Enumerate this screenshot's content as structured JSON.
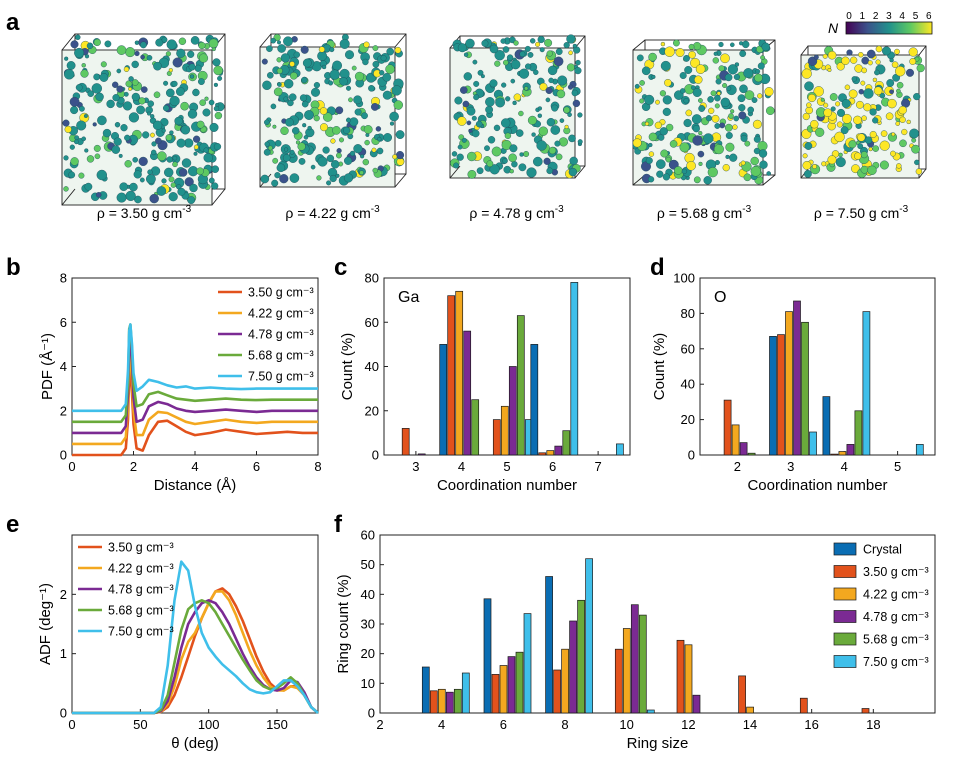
{
  "panel_a": {
    "label": "a",
    "colorbar": {
      "label": "N",
      "ticks": [
        "0",
        "1",
        "2",
        "3",
        "4",
        "5",
        "6"
      ]
    },
    "structures": [
      {
        "density": "3.50",
        "caption_prefix": "ρ = 3.50 g cm",
        "caption_sup": "-3"
      },
      {
        "density": "4.22",
        "caption_prefix": "ρ = 4.22 g cm",
        "caption_sup": "-3"
      },
      {
        "density": "4.78",
        "caption_prefix": "ρ = 4.78 g cm",
        "caption_sup": "-3"
      },
      {
        "density": "5.68",
        "caption_prefix": "ρ = 5.68 g cm",
        "caption_sup": "-3"
      },
      {
        "density": "7.50",
        "caption_prefix": "ρ = 7.50 g cm",
        "caption_sup": "-3"
      }
    ]
  },
  "colors": {
    "crystal": "#0a6db3",
    "d350": "#e2521c",
    "d422": "#f3a81f",
    "d478": "#7b2a93",
    "d568": "#6aaa3b",
    "d750": "#3fbfea",
    "viridis": [
      "#440154",
      "#3b528b",
      "#21918c",
      "#5ec962",
      "#fde725"
    ]
  },
  "chart_data": [
    {
      "id": "b",
      "label": "b",
      "type": "line",
      "xlabel": "Distance (Å)",
      "ylabel": "PDF (Å⁻¹)",
      "xlim": [
        0,
        8
      ],
      "ylim": [
        0,
        8
      ],
      "xticks": [
        0,
        2,
        4,
        6,
        8
      ],
      "yticks": [
        0,
        2,
        4,
        6,
        8
      ],
      "legend_position": "top-right",
      "series": [
        {
          "name": "3.50 g cm⁻³",
          "offset": 0.0,
          "x": [
            0,
            1.6,
            1.75,
            1.82,
            1.86,
            1.9,
            1.95,
            2.0,
            2.1,
            2.3,
            2.5,
            2.8,
            3.1,
            3.4,
            3.7,
            4.0,
            4.5,
            5.0,
            5.5,
            6.0,
            6.5,
            7.0,
            7.5,
            8.0
          ],
          "y": [
            0,
            0,
            0.3,
            1.6,
            3.6,
            3.9,
            2.8,
            1.4,
            0.3,
            0.2,
            0.9,
            1.5,
            1.55,
            1.3,
            1.05,
            0.9,
            1.0,
            1.15,
            1.05,
            0.95,
            1.0,
            1.05,
            1.0,
            1.0
          ]
        },
        {
          "name": "4.22 g cm⁻³",
          "offset": 0.5,
          "x": [
            0,
            1.6,
            1.75,
            1.82,
            1.86,
            1.9,
            1.95,
            2.0,
            2.1,
            2.3,
            2.5,
            2.8,
            3.1,
            3.4,
            3.7,
            4.0,
            4.5,
            5.0,
            5.5,
            6.0,
            6.5,
            7.0,
            7.5,
            8.0
          ],
          "y": [
            0,
            0,
            0.3,
            1.7,
            3.8,
            4.1,
            3.0,
            1.5,
            0.4,
            0.4,
            1.1,
            1.45,
            1.4,
            1.2,
            1.0,
            0.9,
            1.0,
            1.1,
            1.0,
            0.95,
            1.0,
            1.0,
            1.0,
            1.0
          ]
        },
        {
          "name": "4.78 g cm⁻³",
          "offset": 1.0,
          "x": [
            0,
            1.6,
            1.75,
            1.82,
            1.86,
            1.9,
            1.95,
            2.0,
            2.1,
            2.3,
            2.5,
            2.8,
            3.1,
            3.4,
            3.7,
            4.0,
            4.5,
            5.0,
            5.5,
            6.0,
            6.5,
            7.0,
            7.5,
            8.0
          ],
          "y": [
            0,
            0,
            0.3,
            1.8,
            4.0,
            4.3,
            3.2,
            1.6,
            0.5,
            0.6,
            1.2,
            1.4,
            1.3,
            1.1,
            1.0,
            0.95,
            1.0,
            1.05,
            1.0,
            0.95,
            1.0,
            1.0,
            1.0,
            1.0
          ]
        },
        {
          "name": "5.68 g cm⁻³",
          "offset": 1.5,
          "x": [
            0,
            1.6,
            1.75,
            1.82,
            1.86,
            1.9,
            1.95,
            2.0,
            2.1,
            2.3,
            2.5,
            2.8,
            3.1,
            3.4,
            3.7,
            4.0,
            4.5,
            5.0,
            5.5,
            6.0,
            6.5,
            7.0,
            7.5,
            8.0
          ],
          "y": [
            0,
            0,
            0.3,
            1.8,
            4.2,
            4.4,
            3.3,
            1.7,
            0.7,
            0.8,
            1.25,
            1.35,
            1.2,
            1.05,
            1.0,
            0.95,
            1.0,
            1.05,
            1.0,
            0.98,
            1.0,
            1.0,
            1.0,
            1.0
          ]
        },
        {
          "name": "7.50 g cm⁻³",
          "offset": 2.0,
          "x": [
            0,
            1.6,
            1.75,
            1.82,
            1.86,
            1.9,
            1.95,
            2.0,
            2.1,
            2.3,
            2.5,
            2.8,
            3.1,
            3.4,
            3.7,
            4.0,
            4.5,
            5.0,
            5.5,
            6.0,
            6.5,
            7.0,
            7.5,
            8.0
          ],
          "y": [
            0,
            0,
            0.3,
            1.8,
            3.6,
            3.9,
            3.0,
            1.7,
            0.9,
            1.1,
            1.4,
            1.3,
            1.15,
            1.05,
            1.1,
            1.0,
            1.05,
            1.0,
            0.98,
            1.0,
            1.0,
            1.0,
            1.0,
            1.0
          ]
        }
      ]
    },
    {
      "id": "c",
      "label": "c",
      "type": "bar",
      "inset_label": "Ga",
      "xlabel": "Coordination number",
      "ylabel": "Count (%)",
      "xlim": [
        2.3,
        7.7
      ],
      "ylim": [
        0,
        80
      ],
      "yticks": [
        0,
        20,
        40,
        60,
        80
      ],
      "categories": [
        "3",
        "4",
        "5",
        "6",
        "7"
      ],
      "series": [
        {
          "name": "Crystal",
          "values": [
            0,
            50,
            0,
            50,
            0
          ]
        },
        {
          "name": "3.50 g cm⁻³",
          "values": [
            12,
            72,
            16,
            1,
            0
          ]
        },
        {
          "name": "4.22 g cm⁻³",
          "values": [
            0,
            74,
            22,
            2,
            0
          ]
        },
        {
          "name": "4.78 g cm⁻³",
          "values": [
            0.5,
            56,
            40,
            4,
            0
          ]
        },
        {
          "name": "5.68 g cm⁻³",
          "values": [
            0,
            25,
            63,
            11,
            0
          ]
        },
        {
          "name": "7.50 g cm⁻³",
          "values": [
            0,
            0,
            16,
            78,
            5
          ]
        }
      ]
    },
    {
      "id": "d",
      "label": "d",
      "type": "bar",
      "inset_label": "O",
      "xlabel": "Coordination number",
      "ylabel": "Count (%)",
      "xlim": [
        1.3,
        5.7
      ],
      "ylim": [
        0,
        100
      ],
      "yticks": [
        0,
        20,
        40,
        60,
        80,
        100
      ],
      "categories": [
        "2",
        "3",
        "4",
        "5"
      ],
      "series": [
        {
          "name": "Crystal",
          "values": [
            0,
            67,
            33,
            0
          ]
        },
        {
          "name": "3.50 g cm⁻³",
          "values": [
            31,
            68,
            0.5,
            0
          ]
        },
        {
          "name": "4.22 g cm⁻³",
          "values": [
            17,
            81,
            2,
            0
          ]
        },
        {
          "name": "4.78 g cm⁻³",
          "values": [
            7,
            87,
            6,
            0
          ]
        },
        {
          "name": "5.68 g cm⁻³",
          "values": [
            1,
            75,
            25,
            0
          ]
        },
        {
          "name": "7.50 g cm⁻³",
          "values": [
            0,
            13,
            81,
            6
          ]
        }
      ]
    },
    {
      "id": "e",
      "label": "e",
      "type": "line",
      "xlabel": "θ (deg)",
      "ylabel": "ADF (deg⁻¹)",
      "xlim": [
        0,
        180
      ],
      "ylim": [
        0,
        3
      ],
      "xticks": [
        0,
        50,
        100,
        150
      ],
      "yticks": [
        0,
        1,
        2
      ],
      "legend_position": "top-left",
      "series": [
        {
          "name": "3.50 g cm⁻³",
          "x": [
            0,
            60,
            65,
            70,
            75,
            80,
            85,
            90,
            95,
            100,
            105,
            110,
            115,
            120,
            125,
            130,
            135,
            140,
            145,
            150,
            155,
            160,
            165,
            170,
            175,
            180
          ],
          "y": [
            0,
            0,
            0.02,
            0.1,
            0.3,
            0.6,
            0.95,
            1.3,
            1.6,
            1.85,
            2.05,
            2.1,
            2.0,
            1.8,
            1.55,
            1.25,
            0.95,
            0.7,
            0.5,
            0.4,
            0.38,
            0.45,
            0.45,
            0.3,
            0.1,
            0
          ]
        },
        {
          "name": "4.22 g cm⁻³",
          "x": [
            0,
            60,
            65,
            70,
            75,
            80,
            85,
            90,
            95,
            100,
            105,
            110,
            115,
            120,
            125,
            130,
            135,
            140,
            145,
            150,
            155,
            160,
            165,
            170,
            175,
            180
          ],
          "y": [
            0,
            0,
            0.02,
            0.15,
            0.45,
            0.9,
            1.2,
            1.35,
            1.6,
            1.85,
            2.05,
            2.05,
            1.9,
            1.65,
            1.35,
            1.05,
            0.8,
            0.6,
            0.45,
            0.38,
            0.38,
            0.45,
            0.42,
            0.3,
            0.1,
            0
          ]
        },
        {
          "name": "4.78 g cm⁻³",
          "x": [
            0,
            60,
            65,
            70,
            75,
            80,
            85,
            90,
            95,
            100,
            105,
            110,
            115,
            120,
            125,
            130,
            135,
            140,
            145,
            150,
            155,
            160,
            165,
            170,
            175,
            180
          ],
          "y": [
            0,
            0,
            0.03,
            0.2,
            0.6,
            1.1,
            1.5,
            1.7,
            1.85,
            1.9,
            1.85,
            1.7,
            1.5,
            1.25,
            1.0,
            0.78,
            0.6,
            0.47,
            0.4,
            0.38,
            0.42,
            0.55,
            0.52,
            0.35,
            0.1,
            0
          ]
        },
        {
          "name": "5.68 g cm⁻³",
          "x": [
            0,
            60,
            65,
            70,
            75,
            80,
            85,
            90,
            95,
            100,
            105,
            110,
            115,
            120,
            125,
            130,
            135,
            140,
            145,
            150,
            155,
            160,
            165,
            170,
            175,
            180
          ],
          "y": [
            0,
            0,
            0.05,
            0.3,
            0.85,
            1.4,
            1.75,
            1.85,
            1.9,
            1.85,
            1.7,
            1.5,
            1.3,
            1.1,
            0.9,
            0.72,
            0.55,
            0.45,
            0.4,
            0.42,
            0.5,
            0.6,
            0.5,
            0.3,
            0.1,
            0
          ]
        },
        {
          "name": "7.50 g cm⁻³",
          "x": [
            0,
            60,
            65,
            70,
            75,
            80,
            85,
            90,
            95,
            100,
            105,
            110,
            115,
            120,
            125,
            130,
            135,
            140,
            145,
            150,
            155,
            160,
            165,
            170,
            175,
            180
          ],
          "y": [
            0,
            0,
            0.1,
            0.8,
            1.9,
            2.55,
            2.4,
            1.8,
            1.35,
            1.1,
            0.95,
            0.82,
            0.72,
            0.62,
            0.5,
            0.4,
            0.35,
            0.33,
            0.35,
            0.45,
            0.55,
            0.55,
            0.45,
            0.3,
            0.1,
            0
          ]
        }
      ]
    },
    {
      "id": "f",
      "label": "f",
      "type": "bar",
      "xlabel": "Ring size",
      "ylabel": "Ring count (%)",
      "xlim": [
        2,
        20
      ],
      "ylim": [
        0,
        60
      ],
      "xticks": [
        2,
        4,
        6,
        8,
        10,
        12,
        14,
        16,
        18
      ],
      "yticks": [
        0,
        10,
        20,
        30,
        40,
        50,
        60
      ],
      "legend_position": "top-right",
      "categories": [
        "4",
        "6",
        "8",
        "10",
        "12",
        "14",
        "16",
        "18"
      ],
      "series": [
        {
          "name": "Crystal",
          "values": [
            15.5,
            38.5,
            46,
            0,
            0,
            0,
            0,
            0
          ]
        },
        {
          "name": "3.50 g cm⁻³",
          "values": [
            7.5,
            13,
            14.5,
            21.5,
            24.5,
            12.5,
            5,
            1.5
          ]
        },
        {
          "name": "4.22 g cm⁻³",
          "values": [
            8,
            16,
            21.5,
            28.5,
            23,
            2,
            0,
            0
          ]
        },
        {
          "name": "4.78 g cm⁻³",
          "values": [
            7,
            19,
            31,
            36.5,
            6,
            0,
            0,
            0
          ]
        },
        {
          "name": "5.68 g cm⁻³",
          "values": [
            8,
            20.5,
            38,
            33,
            0,
            0,
            0,
            0
          ]
        },
        {
          "name": "7.50 g cm⁻³",
          "values": [
            13.5,
            33.5,
            52,
            1,
            0,
            0,
            0,
            0
          ]
        }
      ]
    }
  ]
}
